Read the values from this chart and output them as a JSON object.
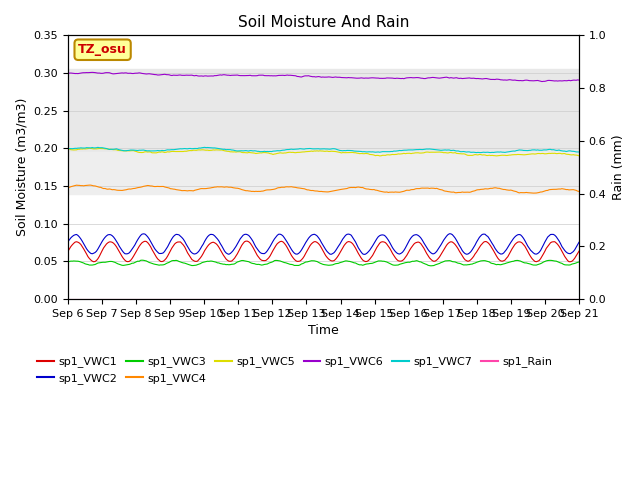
{
  "title": "Soil Moisture And Rain",
  "xlabel": "Time",
  "ylabel_left": "Soil Moisture (m3/m3)",
  "ylabel_right": "Rain (mm)",
  "station_label": "TZ_osu",
  "ylim_left": [
    0.0,
    0.35
  ],
  "ylim_right": [
    0.0,
    1.0
  ],
  "xtick_labels": [
    "Sep 6",
    "Sep 7",
    "Sep 8",
    "Sep 9",
    "Sep 10",
    "Sep 11",
    "Sep 12",
    "Sep 13",
    "Sep 14",
    "Sep 15",
    "Sep 16",
    "Sep 17",
    "Sep 18",
    "Sep 19",
    "Sep 20",
    "Sep 21"
  ],
  "series": {
    "sp1_VWC1": {
      "color": "#dd0000",
      "base": 0.063,
      "amp": 0.013,
      "freq": 1.0,
      "phase": 0.0,
      "noise": 0.001,
      "drift": 0.0
    },
    "sp1_VWC2": {
      "color": "#0000cc",
      "base": 0.073,
      "amp": 0.013,
      "freq": 1.0,
      "phase": 0.2,
      "noise": 0.001,
      "drift": 0.0
    },
    "sp1_VWC3": {
      "color": "#00cc00",
      "base": 0.048,
      "amp": 0.003,
      "freq": 1.0,
      "phase": 0.5,
      "noise": 0.001,
      "drift": 0.0
    },
    "sp1_VWC4": {
      "color": "#ff8800",
      "base": 0.148,
      "amp": 0.003,
      "freq": 0.5,
      "phase": 0.0,
      "noise": 0.001,
      "drift": -0.005
    },
    "sp1_VWC5": {
      "color": "#dddd00",
      "base": 0.198,
      "amp": 0.002,
      "freq": 0.3,
      "phase": 0.0,
      "noise": 0.001,
      "drift": -0.007
    },
    "sp1_VWC6": {
      "color": "#9900cc",
      "base": 0.3,
      "amp": 0.001,
      "freq": 0.2,
      "phase": 0.0,
      "noise": 0.001,
      "drift": -0.01
    },
    "sp1_VWC7": {
      "color": "#00cccc",
      "base": 0.199,
      "amp": 0.002,
      "freq": 0.3,
      "phase": 0.5,
      "noise": 0.001,
      "drift": -0.003
    },
    "sp1_Rain": {
      "color": "#ff44aa",
      "base": 0.0,
      "amp": 0.0,
      "freq": 0.0,
      "phase": 0.0,
      "noise": 0.0,
      "drift": 0.0
    }
  },
  "bg_bands": [
    {
      "ymin": 0.195,
      "ymax": 0.305,
      "color": "#e8e8e8"
    },
    {
      "ymin": 0.14,
      "ymax": 0.195,
      "color": "#eeeeee"
    }
  ],
  "legend_row1": [
    "sp1_VWC1",
    "sp1_VWC2",
    "sp1_VWC3",
    "sp1_VWC4",
    "sp1_VWC5",
    "sp1_VWC6"
  ],
  "legend_row2": [
    "sp1_VWC7",
    "sp1_Rain"
  ]
}
